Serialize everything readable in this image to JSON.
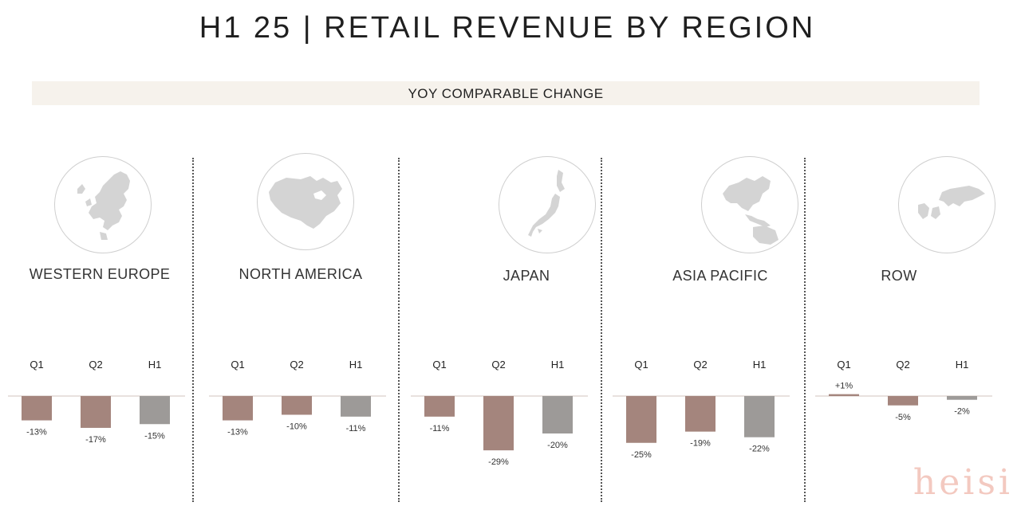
{
  "title": "H1 25 | RETAIL REVENUE BY REGION",
  "banner": "YOY COMPARABLE CHANGE",
  "colors": {
    "q1": "#a4857d",
    "q2": "#a4857d",
    "h1": "#9d9a98",
    "banner_bg": "#f6f2ec",
    "axis": "#d9cfcb"
  },
  "regions": [
    {
      "name": "WESTERN EUROPE",
      "icon": "europe-map-icon"
    },
    {
      "name": "NORTH AMERICA",
      "icon": "north-america-map-icon"
    },
    {
      "name": "JAPAN",
      "icon": "japan-map-icon"
    },
    {
      "name": "ASIA PACIFIC",
      "icon": "asia-pacific-map-icon"
    },
    {
      "name": "ROW",
      "icon": "world-map-icon"
    }
  ],
  "chart_data": [
    {
      "type": "bar",
      "title": "WESTERN EUROPE",
      "categories": [
        "Q1",
        "Q2",
        "H1"
      ],
      "values": [
        -13,
        -17,
        -15
      ],
      "labels": [
        "-13%",
        "-17%",
        "-15%"
      ],
      "ylim": [
        -30,
        2
      ]
    },
    {
      "type": "bar",
      "title": "NORTH AMERICA",
      "categories": [
        "Q1",
        "Q2",
        "H1"
      ],
      "values": [
        -13,
        -10,
        -11
      ],
      "labels": [
        "-13%",
        "-10%",
        "-11%"
      ],
      "ylim": [
        -30,
        2
      ]
    },
    {
      "type": "bar",
      "title": "JAPAN",
      "categories": [
        "Q1",
        "Q2",
        "H1"
      ],
      "values": [
        -11,
        -29,
        -20
      ],
      "labels": [
        "-11%",
        "-29%",
        "-20%"
      ],
      "ylim": [
        -30,
        2
      ]
    },
    {
      "type": "bar",
      "title": "ASIA PACIFIC",
      "categories": [
        "Q1",
        "Q2",
        "H1"
      ],
      "values": [
        -25,
        -19,
        -22
      ],
      "labels": [
        "-25%",
        "-19%",
        "-22%"
      ],
      "ylim": [
        -30,
        2
      ]
    },
    {
      "type": "bar",
      "title": "ROW",
      "categories": [
        "Q1",
        "Q2",
        "H1"
      ],
      "values": [
        1,
        -5,
        -2
      ],
      "labels": [
        "+1%",
        "-5%",
        "-2%"
      ],
      "ylim": [
        -30,
        2
      ]
    }
  ],
  "watermark": "heisi"
}
